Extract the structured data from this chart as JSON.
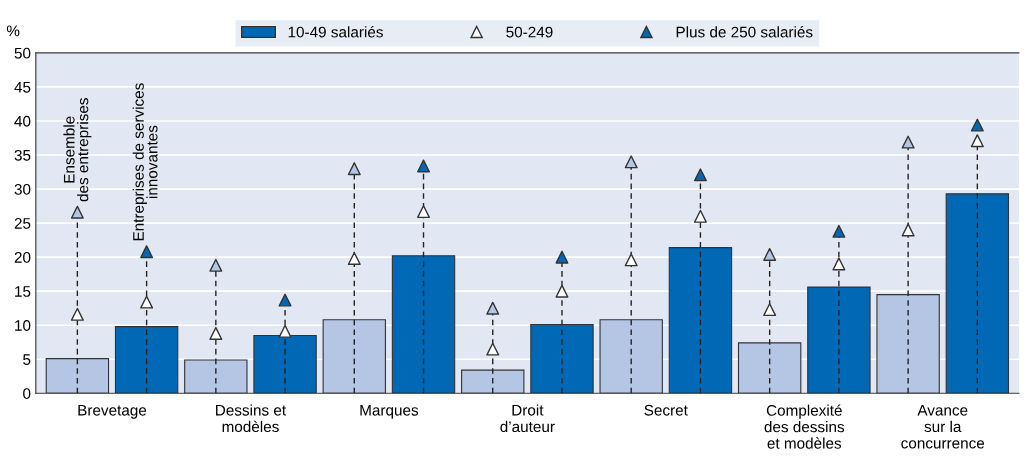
{
  "chart_data": {
    "type": "bar",
    "ylabel": "%",
    "categories": [
      "Brevetage",
      "Dessins et\nmodèles",
      "Marques",
      "Droit\nd’auteur",
      "Secret",
      "Complexité\ndes dessins\net modèles",
      "Avance\nsur la\nconcurrence"
    ],
    "series": [
      {
        "color": "#b4c6e4",
        "values": [
          5.1,
          4.9,
          10.8,
          3.4,
          10.8,
          7.4,
          14.5
        ]
      },
      {
        "name": "10-49 salariés",
        "color": "#0068b5",
        "values": [
          9.8,
          8.5,
          20.2,
          10.1,
          21.4,
          15.6,
          29.3
        ]
      },
      {
        "type": "scatter",
        "name": "50-249",
        "color": "#ffffff",
        "marker": "triangle",
        "values": [
          11.6,
          8.8,
          19.8,
          6.5,
          19.6,
          12.3,
          24.0
        ]
      },
      {
        "type": "scatter",
        "color": "#ffffff",
        "marker": "triangle",
        "values": [
          13.4,
          9.1,
          26.7,
          15.0,
          26.0,
          19.0,
          37.1
        ]
      },
      {
        "type": "scatter",
        "color": "#b4c6e4",
        "marker": "triangle",
        "values": [
          26.6,
          18.8,
          33.0,
          12.5,
          34.0,
          20.4,
          36.9
        ]
      },
      {
        "type": "scatter",
        "name": "Plus de 250 salariés",
        "color": "#0068b5",
        "marker": "triangle",
        "values": [
          20.8,
          13.7,
          33.4,
          20.0,
          32.1,
          23.8,
          39.4
        ]
      }
    ],
    "ylim": [
      0,
      50
    ],
    "yticks": [
      0,
      5,
      10,
      15,
      20,
      25,
      30,
      35,
      40,
      45,
      50
    ],
    "grid": "y",
    "legend": "top",
    "annotations": [
      "Ensemble\ndes entreprises",
      "Entreprises de services\ninnovantes"
    ]
  }
}
